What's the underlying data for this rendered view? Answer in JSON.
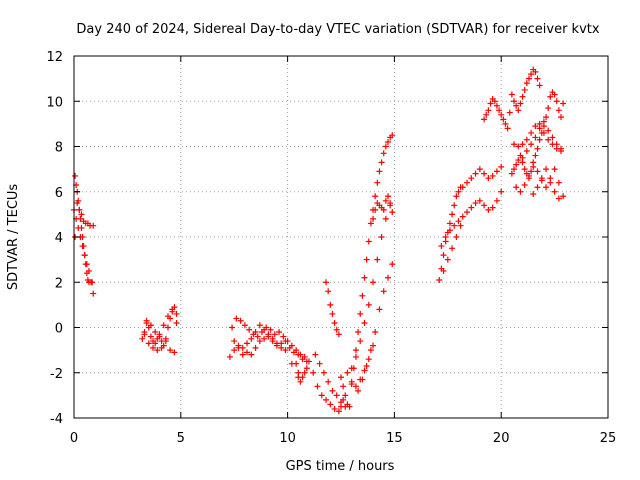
{
  "chart_data": {
    "type": "scatter",
    "title": "Day 240 of 2024, Sidereal Day-to-day VTEC variation (SDTVAR) for receiver kvtx",
    "xlabel": "GPS time / hours",
    "ylabel": "SDTVAR / TECUs",
    "xlim": [
      0,
      25
    ],
    "ylim": [
      -4,
      12
    ],
    "xticks": [
      0,
      5,
      10,
      15,
      20,
      25
    ],
    "yticks": [
      -4,
      -2,
      0,
      2,
      4,
      6,
      8,
      10,
      12
    ],
    "grid": true,
    "marker": "+",
    "marker_color": "#ff0000",
    "series": [
      {
        "x": [
          0.0,
          0.05,
          0.1,
          0.15,
          0.2,
          0.25,
          0.3,
          0.35,
          0.4,
          0.45,
          0.5,
          0.55,
          0.6,
          0.65,
          0.7,
          0.8,
          0.9,
          0.1,
          0.2,
          0.3,
          0.4,
          0.5,
          0.6,
          0.7,
          0.85,
          0.05,
          0.15,
          0.25,
          0.35,
          0.45,
          0.55,
          0.65,
          0.75,
          0.9
        ],
        "y": [
          5.2,
          6.7,
          6.3,
          6.0,
          5.6,
          5.2,
          4.8,
          4.4,
          4.0,
          3.6,
          3.2,
          2.8,
          2.4,
          2.1,
          2.0,
          2.0,
          1.5,
          4.8,
          4.4,
          4.0,
          3.6,
          3.2,
          2.8,
          2.5,
          2.0,
          4.0,
          5.5,
          5.2,
          5.0,
          4.7,
          4.6,
          4.6,
          4.5,
          4.5
        ]
      },
      {
        "x": [
          3.2,
          3.3,
          3.4,
          3.5,
          3.6,
          3.7,
          3.8,
          3.9,
          4.0,
          4.1,
          4.2,
          4.3,
          4.4,
          4.5,
          4.6,
          4.7,
          4.8,
          3.3,
          3.5,
          3.7,
          3.9,
          4.1,
          4.3,
          4.5,
          4.7,
          3.4,
          3.6,
          3.8,
          4.0,
          4.2,
          4.4,
          4.6,
          4.8
        ],
        "y": [
          -0.5,
          -0.3,
          0.2,
          0.0,
          -0.4,
          -0.6,
          -0.7,
          -0.5,
          -0.3,
          -0.6,
          -0.8,
          -0.5,
          0.0,
          0.4,
          0.8,
          0.9,
          0.6,
          -0.2,
          -0.7,
          -0.9,
          -1.0,
          -0.9,
          -0.6,
          -1.0,
          -1.1,
          0.3,
          0.1,
          -0.2,
          -0.4,
          0.1,
          0.5,
          0.7,
          0.2
        ]
      },
      {
        "x": [
          7.3,
          7.5,
          7.7,
          7.9,
          8.1,
          8.3,
          8.5,
          8.7,
          8.9,
          9.1,
          9.3,
          9.5,
          9.7,
          9.9,
          10.1,
          10.3,
          10.5,
          10.7,
          10.9,
          7.4,
          7.6,
          7.8,
          8.0,
          8.2,
          8.4,
          8.6,
          8.8,
          9.0,
          9.2,
          9.4,
          9.6,
          9.8,
          10.0,
          10.2,
          10.4,
          10.6,
          10.8,
          7.5,
          7.7,
          7.9,
          8.1,
          8.3,
          8.5,
          8.7,
          8.9,
          9.1,
          9.3,
          9.5,
          9.7,
          9.9,
          10.2,
          10.5
        ],
        "y": [
          -1.3,
          -1.0,
          -0.8,
          -0.9,
          -1.1,
          -1.2,
          -0.9,
          -0.6,
          -0.5,
          -0.4,
          -0.6,
          -0.8,
          -0.7,
          -0.6,
          -0.9,
          -1.1,
          -1.2,
          -1.4,
          -1.5,
          0.0,
          0.4,
          0.3,
          0.1,
          -0.1,
          -0.3,
          -0.4,
          -0.2,
          0.0,
          -0.1,
          -0.3,
          -0.2,
          -0.4,
          -0.6,
          -0.8,
          -1.0,
          -1.2,
          -1.3,
          -0.6,
          -0.9,
          -1.2,
          -0.7,
          -0.5,
          -0.2,
          0.1,
          -0.1,
          -0.3,
          -0.5,
          -0.7,
          -0.9,
          -1.0,
          -1.6,
          -2.2
        ]
      },
      {
        "x": [
          10.4,
          10.5,
          10.6,
          10.7,
          10.8,
          10.9,
          11.0,
          11.2,
          11.4,
          11.6,
          11.8,
          12.0,
          12.2,
          12.4,
          12.5,
          12.6,
          11.3,
          11.5,
          11.7,
          11.9,
          12.1,
          12.3,
          12.5,
          12.7
        ],
        "y": [
          -1.6,
          -2.0,
          -2.4,
          -2.2,
          -2.0,
          -1.8,
          -1.5,
          -2.0,
          -2.6,
          -3.0,
          -3.2,
          -3.4,
          -3.6,
          -3.7,
          -3.5,
          -3.2,
          -1.2,
          -1.6,
          -2.0,
          -2.4,
          -2.8,
          -3.0,
          -3.3,
          -3.5
        ]
      },
      {
        "x": [
          11.8,
          11.9,
          12.0,
          12.1,
          12.2,
          12.3,
          12.4,
          12.5,
          12.6,
          12.7,
          12.8,
          12.9,
          13.0,
          13.1,
          13.2,
          13.3,
          13.4,
          13.5,
          13.6,
          13.7,
          13.8,
          13.9,
          14.0,
          14.1,
          14.2,
          14.3,
          14.4,
          14.5,
          14.6,
          14.7,
          14.8,
          14.9,
          13.0,
          13.2,
          13.4,
          13.6,
          13.8,
          14.0,
          14.2,
          14.4,
          14.6,
          14.8,
          13.3,
          13.5,
          13.7,
          13.9,
          14.1,
          14.3,
          14.5,
          14.7,
          14.9,
          12.8,
          13.0,
          13.2,
          13.4,
          13.6,
          13.8,
          14.0
        ],
        "y": [
          2.0,
          1.6,
          1.0,
          0.6,
          0.2,
          -0.1,
          -0.3,
          -2.2,
          -2.6,
          -3.0,
          -3.4,
          -3.5,
          -2.5,
          -1.8,
          -1.0,
          -0.2,
          0.6,
          1.4,
          2.2,
          3.0,
          3.8,
          4.6,
          5.2,
          5.8,
          6.4,
          6.9,
          7.3,
          7.7,
          8.0,
          8.2,
          8.4,
          8.5,
          -1.8,
          -1.3,
          -0.6,
          0.2,
          1.0,
          2.0,
          3.0,
          4.0,
          4.8,
          5.4,
          -2.8,
          -2.3,
          -1.7,
          -1.0,
          -0.2,
          0.8,
          1.6,
          2.2,
          2.8,
          -2.0,
          -2.4,
          -2.6,
          -2.3,
          -1.9,
          -1.4,
          -0.8
        ]
      },
      {
        "x": [
          14.0,
          14.1,
          14.2,
          14.3,
          14.4,
          14.5,
          14.6,
          14.7,
          14.8,
          14.9
        ],
        "y": [
          4.8,
          5.2,
          5.5,
          5.4,
          5.3,
          5.2,
          5.6,
          5.8,
          5.5,
          5.1
        ]
      },
      {
        "x": [
          17.1,
          17.2,
          17.3,
          17.4,
          17.5,
          17.6,
          17.7,
          17.8,
          17.9,
          18.0,
          18.1,
          18.2,
          18.4,
          18.6,
          18.8,
          19.0,
          19.2,
          19.4,
          19.6,
          19.8,
          20.0,
          17.2,
          17.4,
          17.6,
          17.8,
          18.0,
          18.2,
          18.4,
          18.6,
          18.8,
          19.0,
          19.2,
          19.4,
          19.6,
          19.8,
          20.0,
          17.3,
          17.5,
          17.7,
          17.9,
          18.1
        ],
        "y": [
          2.1,
          2.6,
          3.2,
          3.8,
          4.2,
          4.6,
          5.0,
          5.4,
          5.8,
          6.0,
          6.2,
          6.2,
          6.4,
          6.6,
          6.8,
          7.0,
          6.8,
          6.6,
          6.7,
          6.9,
          7.1,
          3.6,
          4.0,
          4.3,
          4.5,
          4.7,
          4.9,
          5.1,
          5.3,
          5.5,
          5.6,
          5.4,
          5.2,
          5.3,
          5.6,
          6.0,
          2.5,
          3.0,
          3.5,
          4.0,
          4.5
        ]
      },
      {
        "x": [
          19.2,
          19.3,
          19.4,
          19.5,
          19.6,
          19.7,
          19.8,
          19.9,
          20.0,
          20.1,
          20.2,
          20.3,
          20.4,
          20.5,
          20.6,
          20.7,
          20.8,
          20.9,
          21.0,
          21.1,
          21.2,
          21.3,
          21.4,
          21.5,
          21.6,
          21.7,
          21.8
        ],
        "y": [
          9.2,
          9.4,
          9.6,
          9.9,
          10.1,
          10.0,
          9.8,
          9.6,
          9.4,
          9.2,
          9.0,
          8.8,
          9.5,
          10.3,
          10.0,
          9.8,
          9.6,
          9.9,
          10.2,
          10.5,
          10.8,
          11.0,
          11.2,
          11.4,
          11.3,
          11.0,
          10.7
        ]
      },
      {
        "x": [
          20.5,
          20.6,
          20.7,
          20.8,
          20.9,
          21.0,
          21.1,
          21.2,
          21.3,
          21.4,
          21.5,
          21.6,
          21.7,
          21.8,
          21.9,
          22.0,
          22.1,
          22.2,
          22.3,
          22.4,
          22.5,
          22.6,
          22.7,
          22.8,
          22.9,
          20.6,
          20.8,
          21.0,
          21.2,
          21.4,
          21.6,
          21.8,
          22.0,
          22.2,
          22.4,
          22.6,
          22.8,
          20.7,
          20.9,
          21.1,
          21.3,
          21.5,
          21.7,
          21.9,
          22.1,
          22.3,
          22.5,
          22.7,
          22.9,
          21.0,
          21.2,
          21.4,
          21.6,
          21.8,
          22.0,
          22.2,
          22.4,
          22.6,
          22.8,
          21.5,
          21.7,
          21.9,
          22.1,
          22.3,
          22.5,
          22.7
        ],
        "y": [
          6.8,
          7.0,
          7.2,
          7.4,
          7.6,
          7.3,
          7.0,
          6.8,
          6.6,
          6.9,
          7.3,
          7.6,
          7.9,
          8.3,
          8.6,
          8.9,
          9.3,
          9.7,
          10.2,
          10.4,
          10.3,
          10.0,
          9.6,
          9.3,
          9.9,
          8.1,
          8.0,
          8.1,
          8.3,
          8.6,
          8.9,
          9.0,
          8.6,
          8.3,
          8.1,
          7.9,
          7.8,
          6.2,
          6.0,
          6.3,
          6.7,
          7.1,
          6.9,
          6.5,
          6.2,
          6.6,
          7.0,
          6.4,
          5.8,
          7.5,
          7.8,
          8.1,
          8.4,
          8.8,
          9.1,
          8.7,
          8.4,
          8.1,
          7.9,
          5.9,
          6.2,
          6.6,
          7.0,
          6.4,
          6.0,
          5.7
        ]
      }
    ]
  }
}
